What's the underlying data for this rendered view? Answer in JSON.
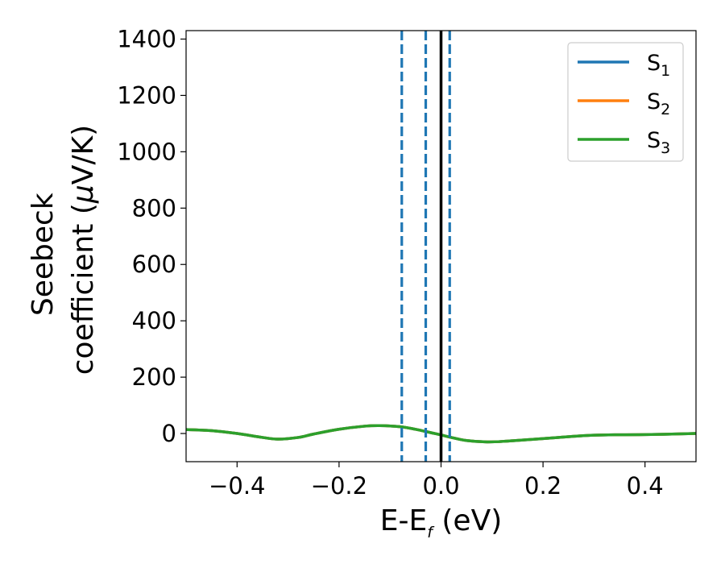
{
  "chart_data": {
    "type": "line",
    "xlabel": {
      "main": "E-E",
      "sub": "f",
      "rest": " (eV)"
    },
    "ylabel": {
      "line1": "Seebeck",
      "line2_prefix": "coefficient  (",
      "mu": "μ",
      "line2_suffix": "V/K)"
    },
    "xlim": [
      -0.5,
      0.5
    ],
    "ylim": [
      -100,
      1430
    ],
    "xticks": [
      -0.4,
      -0.2,
      0.0,
      0.2,
      0.4
    ],
    "xtick_labels": [
      "−0.4",
      "−0.2",
      "0.0",
      "0.2",
      "0.4"
    ],
    "yticks": [
      0,
      200,
      400,
      600,
      800,
      1000,
      1200,
      1400
    ],
    "ytick_labels": [
      "0",
      "200",
      "400",
      "600",
      "800",
      "1000",
      "1200",
      "1400"
    ],
    "grid": false,
    "legend_position": "top-right",
    "series": [
      {
        "name": "S",
        "sub": "1",
        "color": "#1f77b4"
      },
      {
        "name": "S",
        "sub": "2",
        "color": "#ff7f0e"
      },
      {
        "name": "S",
        "sub": "3",
        "color": "#2ca02c"
      }
    ],
    "curve": {
      "x": [
        -0.5,
        -0.45,
        -0.4,
        -0.35,
        -0.32,
        -0.28,
        -0.25,
        -0.2,
        -0.15,
        -0.12,
        -0.08,
        -0.05,
        -0.02,
        0.0,
        0.02,
        0.05,
        0.09,
        0.13,
        0.2,
        0.3,
        0.4,
        0.5
      ],
      "y": [
        14,
        10,
        0,
        -14,
        -20,
        -14,
        -2,
        15,
        26,
        28,
        24,
        15,
        3,
        -5,
        -14,
        -25,
        -30,
        -27,
        -18,
        -6,
        -4,
        0
      ]
    },
    "vlines": [
      {
        "x": -0.077,
        "style": "dashed",
        "color": "#1f77b4"
      },
      {
        "x": -0.03,
        "style": "dashed",
        "color": "#1f77b4"
      },
      {
        "x": 0.017,
        "style": "dashed",
        "color": "#1f77b4"
      },
      {
        "x": 0.0,
        "style": "solid",
        "color": "#000000"
      }
    ]
  }
}
